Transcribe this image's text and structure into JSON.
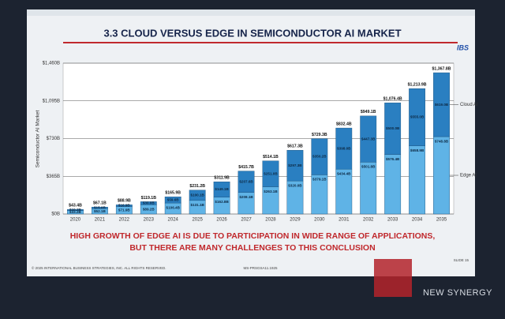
{
  "chart_data": {
    "type": "stacked_bar",
    "title": "3.3 CLOUD VERSUS EDGE IN SEMICONDUCTOR AI MARKET",
    "logo": "IBS",
    "y_label": "Semiconductor AI Market",
    "categories": [
      "2020",
      "2021",
      "2022",
      "2023",
      "2024",
      "2025",
      "2026",
      "2027",
      "2028",
      "2029",
      "2030",
      "2031",
      "2032",
      "2033",
      "2034",
      "2035"
    ],
    "series": [
      {
        "name": "Edge AI",
        "color": "#5fb3e6",
        "values": [
          33.2,
          52.1,
          71.9,
          89.2,
          106.4,
          131.1,
          162.8,
          208.1,
          263.1,
          320.0,
          379.1,
          434.4,
          501.8,
          576.4,
          658.9,
          748.8
        ],
        "value_labels": [
          "$33.2B",
          "$52.1B",
          "$71.9B",
          "$89.2B",
          "$106.4B",
          "$131.1B",
          "$162.8B",
          "$208.1B",
          "$263.1B",
          "$320.0B",
          "$379.1B",
          "$434.4B",
          "$501.8B",
          "$576.4B",
          "$658.9B",
          "$748.8B"
        ]
      },
      {
        "name": "Cloud AI",
        "color": "#2a7fc1",
        "values": [
          10.2,
          15.0,
          16.9,
          30.0,
          59.6,
          100.1,
          149.1,
          207.6,
          251.0,
          297.3,
          350.2,
          398.0,
          447.3,
          500.0,
          555.0,
          619.0
        ],
        "value_labels": [
          "$10.2B",
          "$15.0B",
          "$16.9B",
          "$30.0B",
          "$59.6B",
          "$100.1B",
          "$149.1B",
          "$207.6B",
          "$251.0B",
          "$297.3B",
          "$350.2B",
          "$398.0B",
          "$447.3B",
          "$500.0B",
          "$555.0B",
          "$619.0B"
        ]
      }
    ],
    "totals": {
      "values": [
        43.4,
        67.1,
        88.9,
        119.1,
        165.9,
        231.2,
        311.9,
        415.7,
        514.1,
        617.3,
        729.3,
        832.4,
        949.1,
        1076.4,
        1213.9,
        1367.8
      ],
      "value_labels": [
        "$43.4B",
        "$67.1B",
        "$88.9B",
        "$119.1B",
        "$165.9B",
        "$231.2B",
        "$311.9B",
        "$415.7B",
        "$514.1B",
        "$617.3B",
        "$729.3B",
        "$832.4B",
        "$949.1B",
        "$1,076.4B",
        "$1,213.9B",
        "$1,367.8B"
      ]
    },
    "ylim": [
      0,
      1460
    ],
    "yticks": [
      {
        "value": 0,
        "label": "$0B"
      },
      {
        "value": 365,
        "label": "$365B"
      },
      {
        "value": 730,
        "label": "$730B"
      },
      {
        "value": 1095,
        "label": "$1,095B"
      },
      {
        "value": 1460,
        "label": "$1,460B"
      }
    ],
    "grid": true,
    "legend": "right",
    "message": [
      "HIGH GROWTH OF EDGE AI IS DUE TO PARTICIPATION IN WIDE RANGE OF APPLICATIONS,",
      "BUT THERE ARE MANY CHALLENGES TO THIS CONCLUSION"
    ],
    "footer": {
      "copyright": "© 2025 INTERNATIONAL BUSINESS STRATEGIES, INC. ALL RIGHTS RESERVED.",
      "code": "MS-PRSGSA11.1925",
      "slide": "SLIDE 15"
    },
    "watermark": "NEW SYNERGY"
  }
}
